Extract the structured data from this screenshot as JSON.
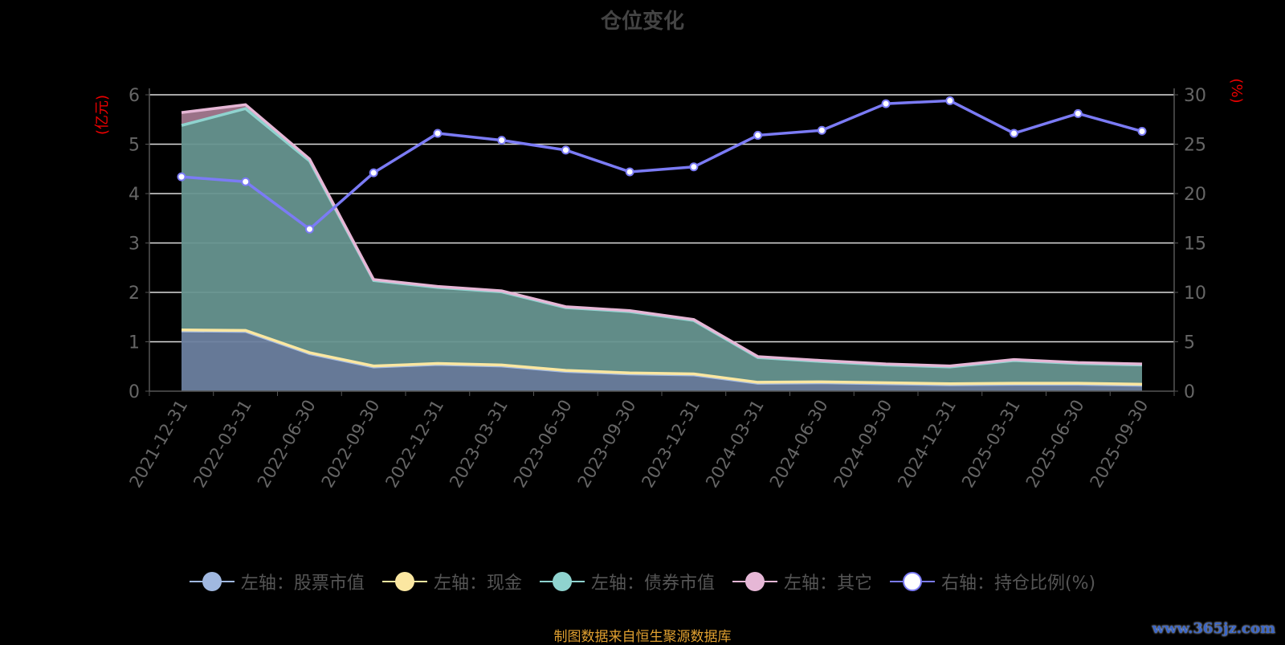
{
  "chart_data": {
    "type": "area",
    "title": "仓位变化",
    "stacked": true,
    "x": [
      "2021-12-31",
      "2022-03-31",
      "2022-06-30",
      "2022-09-30",
      "2022-12-31",
      "2023-03-31",
      "2023-06-30",
      "2023-09-30",
      "2023-12-31",
      "2024-03-31",
      "2024-06-30",
      "2024-09-30",
      "2024-12-31",
      "2025-03-31",
      "2025-06-30",
      "2025-09-30"
    ],
    "left_axis": {
      "label": "(亿元)",
      "range": [
        0,
        6
      ],
      "ticks": [
        "0",
        "1",
        "2",
        "3",
        "4",
        "5",
        "6"
      ]
    },
    "right_axis": {
      "label": "(%)",
      "range": [
        0,
        30
      ],
      "ticks": [
        "0",
        "5",
        "10",
        "15",
        "20",
        "25",
        "30"
      ]
    },
    "grid": true,
    "legend_position": "bottom",
    "series": [
      {
        "name": "左轴：股票市值",
        "axis": "left",
        "kind": "area",
        "color": "#a0b8e0",
        "fill": "#6b7f9f",
        "values": [
          1.22,
          1.21,
          0.76,
          0.49,
          0.54,
          0.51,
          0.4,
          0.35,
          0.33,
          0.16,
          0.17,
          0.15,
          0.13,
          0.14,
          0.14,
          0.12
        ]
      },
      {
        "name": "左轴：现金",
        "axis": "left",
        "kind": "area",
        "color": "#fbe7a1",
        "fill": "#8a8a70",
        "values": [
          0.02,
          0.02,
          0.02,
          0.02,
          0.02,
          0.02,
          0.02,
          0.02,
          0.02,
          0.02,
          0.02,
          0.02,
          0.02,
          0.02,
          0.02,
          0.02
        ]
      },
      {
        "name": "左轴：债券市值",
        "axis": "left",
        "kind": "area",
        "color": "#8fd3cf",
        "fill": "#66948f",
        "values": [
          4.14,
          4.49,
          3.88,
          1.73,
          1.54,
          1.48,
          1.27,
          1.24,
          1.08,
          0.5,
          0.41,
          0.36,
          0.34,
          0.46,
          0.4,
          0.39
        ]
      },
      {
        "name": "左轴：其它",
        "axis": "left",
        "kind": "area",
        "color": "#e6b7d6",
        "fill": "#a3788f",
        "values": [
          0.26,
          0.08,
          0.04,
          0.02,
          0.02,
          0.02,
          0.02,
          0.02,
          0.02,
          0.02,
          0.02,
          0.02,
          0.02,
          0.02,
          0.02,
          0.02
        ]
      },
      {
        "name": "右轴：持仓比例(%)",
        "axis": "right",
        "kind": "line",
        "color": "#7b7bf5",
        "values": [
          21.7,
          21.2,
          16.4,
          22.1,
          26.1,
          25.4,
          24.4,
          22.2,
          22.7,
          25.9,
          26.4,
          29.1,
          29.4,
          26.1,
          28.1,
          26.3
        ]
      }
    ]
  },
  "footer": "制图数据来自恒生聚源数据库",
  "watermark": "www.365jz.com"
}
